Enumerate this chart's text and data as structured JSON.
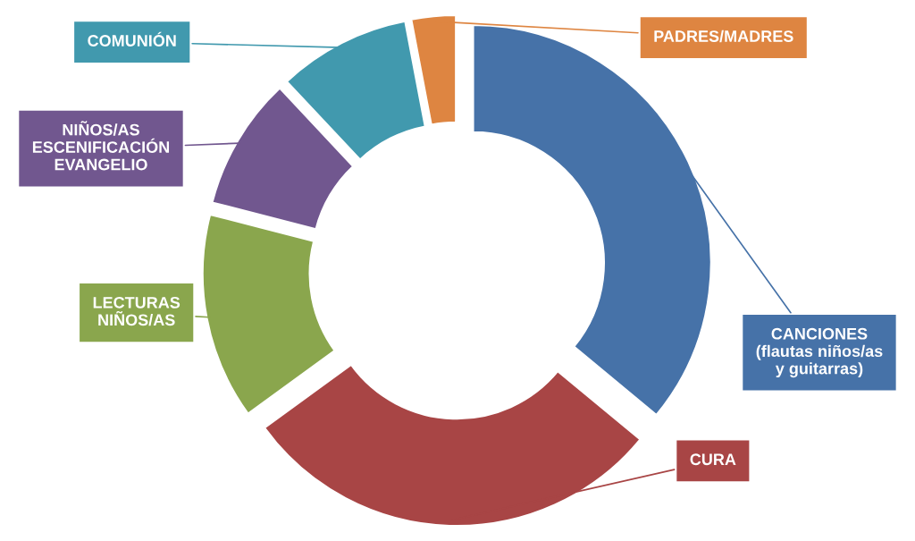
{
  "chart_data": {
    "type": "donut",
    "categories": [
      "CANCIONES\n(flautas niños/as\ny guitarras)",
      "CURA",
      "LECTURAS\nNIÑOS/AS",
      "NIÑOS/AS\nESCENIFICACIÓN\nEVANGELIO",
      "COMUNIÓN",
      "PADRES/MADRES"
    ],
    "values": [
      36,
      29,
      14,
      9,
      9,
      3
    ],
    "colors": [
      "#4672a8",
      "#a84545",
      "#8aa64d",
      "#71578f",
      "#4199ae",
      "#de8541"
    ],
    "legend": false
  }
}
